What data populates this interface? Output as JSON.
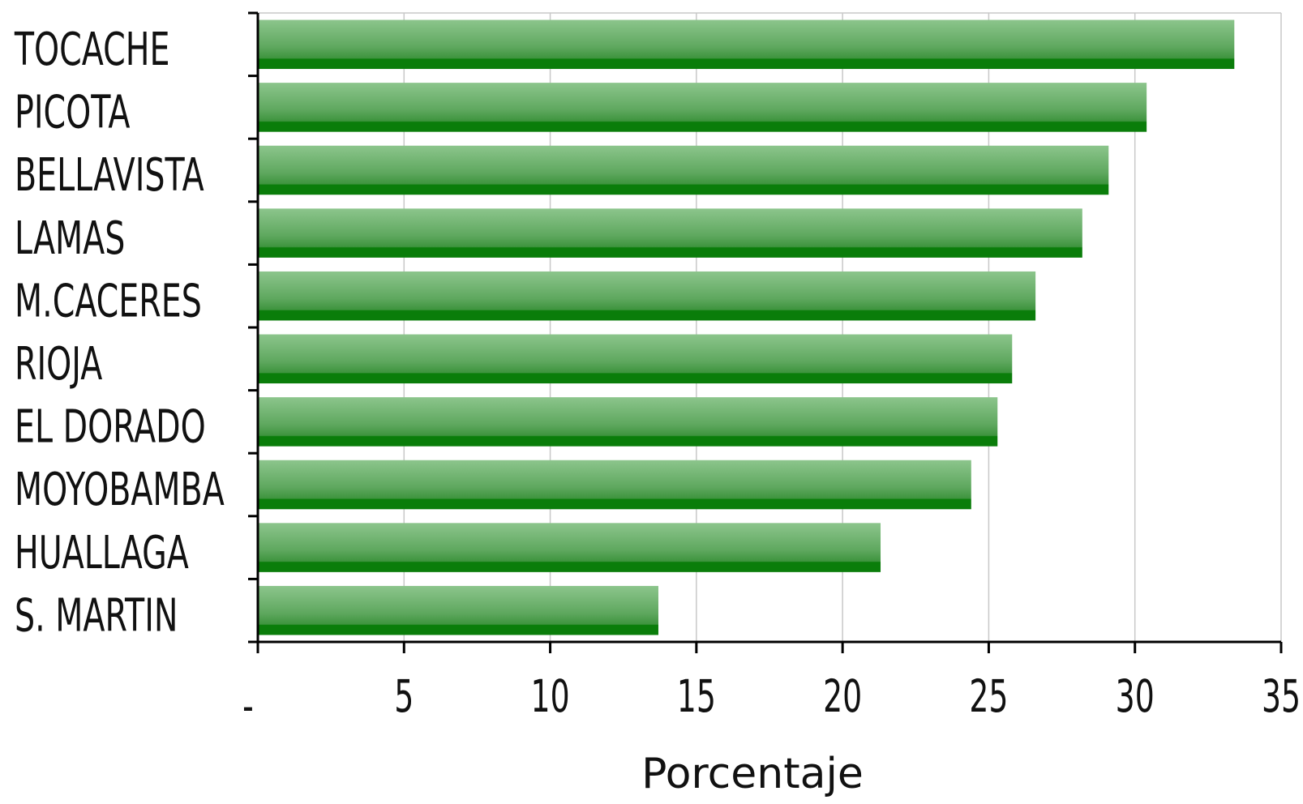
{
  "chart_data": {
    "type": "bar",
    "orientation": "horizontal",
    "categories": [
      "TOCACHE",
      "PICOTA",
      "BELLAVISTA",
      "LAMAS",
      "M.CACERES",
      "RIOJA",
      "EL DORADO",
      "MOYOBAMBA",
      "HUALLAGA",
      "S. MARTIN"
    ],
    "values": [
      33.4,
      30.4,
      29.1,
      28.2,
      26.6,
      25.8,
      25.3,
      24.4,
      21.3,
      13.7
    ],
    "xlabel": "Porcentaje",
    "ylabel": "",
    "xlim": [
      0,
      35
    ],
    "xticks": [
      0,
      5,
      10,
      15,
      20,
      25,
      30,
      35
    ],
    "xtick_labels": [
      "-",
      "5",
      "10",
      "15",
      "20",
      "25",
      "30",
      "35"
    ],
    "grid": "vertical",
    "legend": "none",
    "bar_color_light": "#8cc58c",
    "bar_color_dark": "#0a7d0a",
    "grid_color": "#c8c8c8",
    "axis_color": "#000000"
  }
}
